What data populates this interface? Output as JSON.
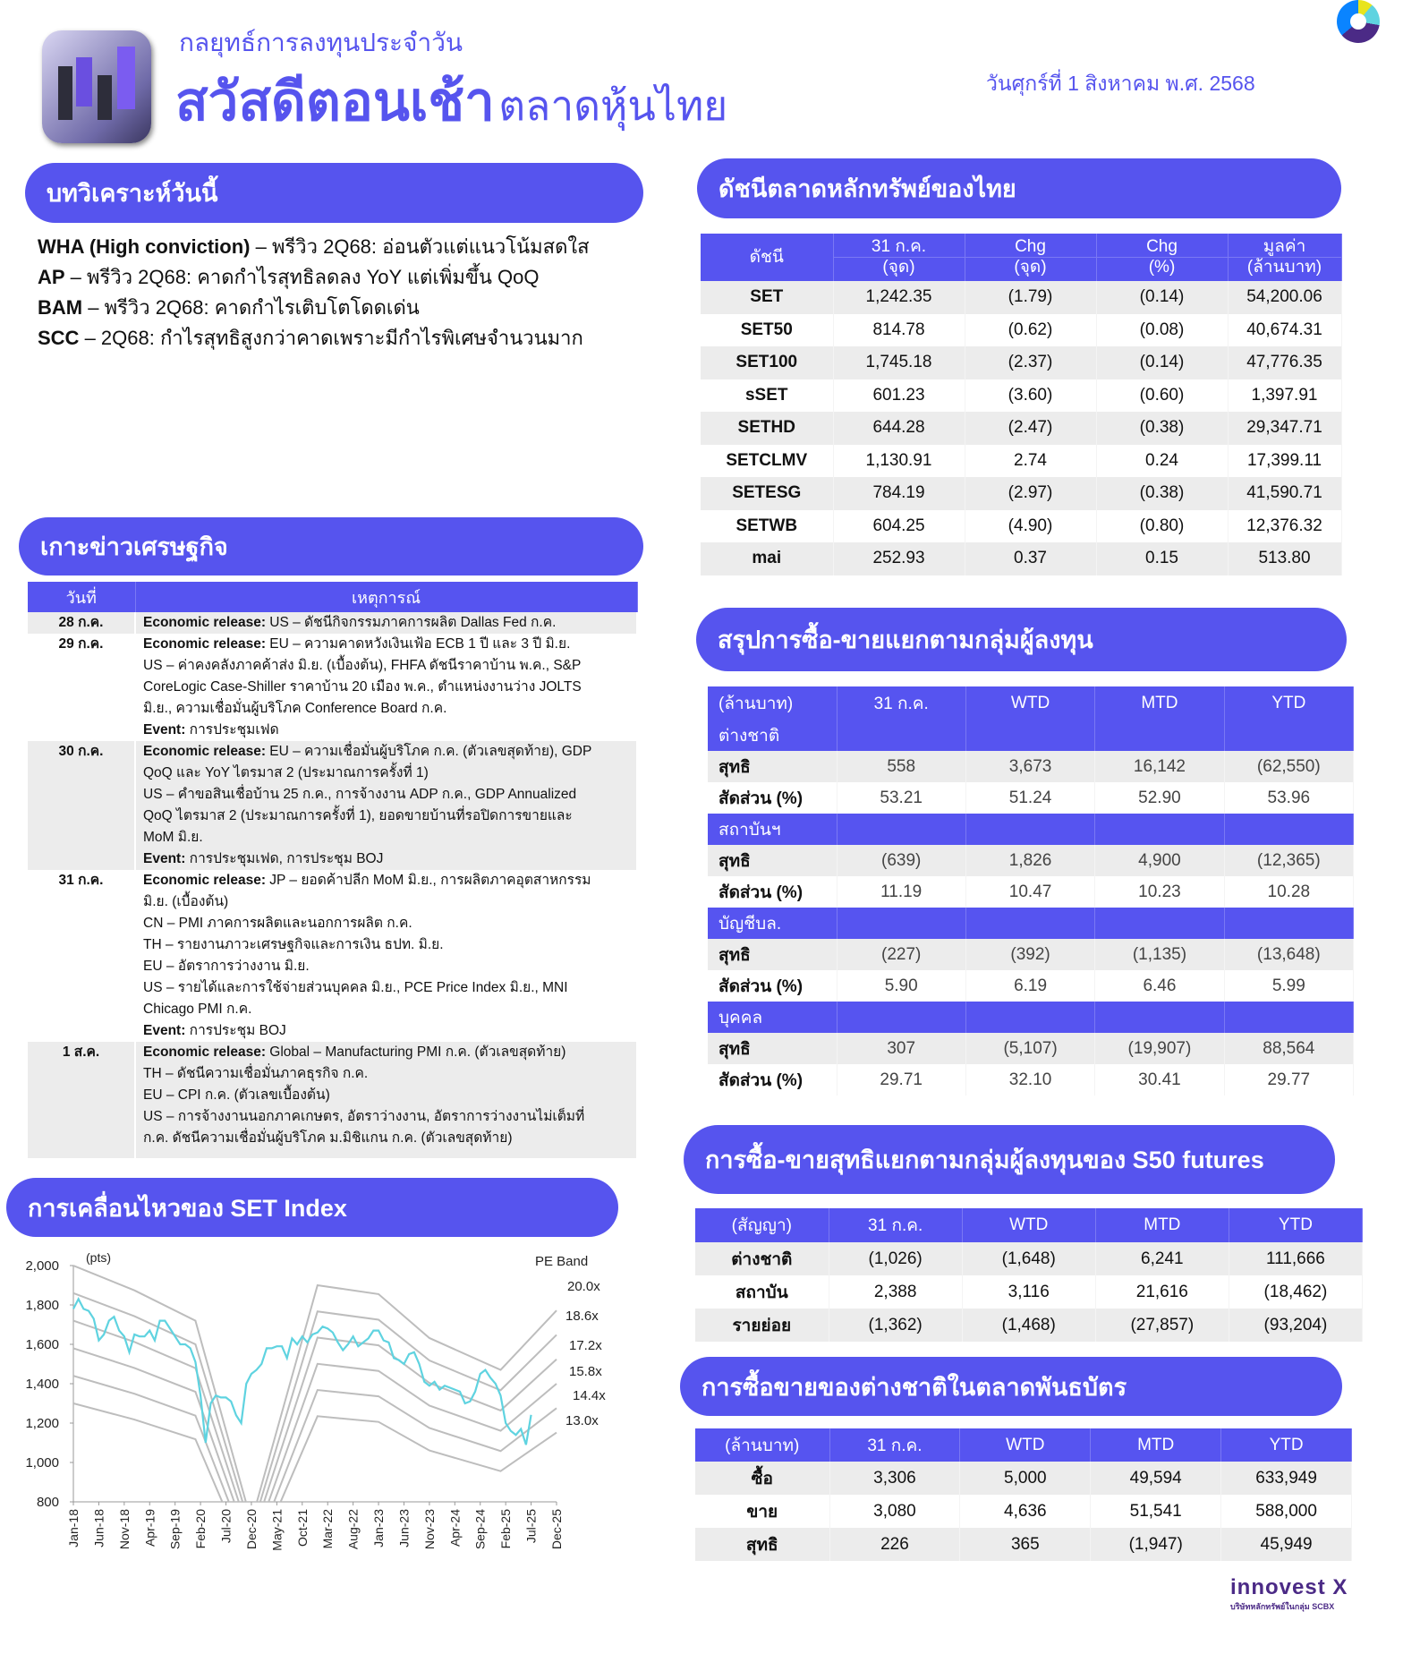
{
  "header": {
    "subtitle": "กลยุทธ์การลงทุนประจำวัน",
    "title": "สวัสดีตอนเช้า",
    "title_suffix": "ตลาดหุ้นไทย",
    "date": "วันศุกร์ที่ 1 สิงหาคม พ.ศ. 2568",
    "brand_color": "#5654ee"
  },
  "analysis": {
    "title": "บทวิเคราะห์วันนี้",
    "items": [
      {
        "ticker": "WHA (High conviction)",
        "text": " – พรีวิว 2Q68: อ่อนตัวแต่แนวโน้มสดใส"
      },
      {
        "ticker": "AP",
        "text": " – พรีวิว 2Q68: คาดกำไรสุทธิลดลง YoY แต่เพิ่มขึ้น QoQ"
      },
      {
        "ticker": "BAM",
        "text": " – พรีวิว 2Q68: คาดกำไรเติบโตโดดเด่น"
      },
      {
        "ticker": "SCC",
        "text": " – 2Q68: กำไรสุทธิสูงกว่าคาดเพราะมีกำไรพิเศษจำนวนมาก"
      }
    ]
  },
  "econ": {
    "title": "เกาะข่าวเศรษฐกิจ",
    "col_date": "วันที่",
    "col_event": "เหตุการณ์",
    "rows": [
      {
        "date": "28 ก.ค.",
        "lines": [
          {
            "b": "Economic release:",
            "t": " US – ดัชนีกิจกรรมภาคการผลิต Dallas Fed ก.ค."
          }
        ]
      },
      {
        "date": "29 ก.ค.",
        "lines": [
          {
            "b": "Economic release:",
            "t": " EU – ความคาดหวังเงินเฟ้อ ECB 1 ปี และ 3 ปี มิ.ย."
          },
          {
            "b": "",
            "t": "US – ค่าคงคลังภาคค้าส่ง มิ.ย. (เบื้องต้น), FHFA ดัชนีราคาบ้าน พ.ค., S&P"
          },
          {
            "b": "",
            "t": "CoreLogic Case-Shiller ราคาบ้าน 20 เมือง พ.ค., ตำแหน่งงานว่าง JOLTS"
          },
          {
            "b": "",
            "t": "มิ.ย., ความเชื่อมั่นผู้บริโภค Conference Board ก.ค."
          },
          {
            "b": "Event:",
            "t": " การประชุมเฟด"
          }
        ]
      },
      {
        "date": "30 ก.ค.",
        "lines": [
          {
            "b": "Economic release:",
            "t": " EU – ความเชื่อมั่นผู้บริโภค ก.ค. (ตัวเลขสุดท้าย), GDP"
          },
          {
            "b": "",
            "t": "QoQ และ YoY ไตรมาส 2 (ประมาณการครั้งที่ 1)"
          },
          {
            "b": "",
            "t": "US – คำขอสินเชื่อบ้าน 25 ก.ค., การจ้างงาน ADP ก.ค., GDP Annualized"
          },
          {
            "b": "",
            "t": "QoQ ไตรมาส 2 (ประมาณการครั้งที่ 1), ยอดขายบ้านที่รอปิดการขายและ"
          },
          {
            "b": "",
            "t": "MoM มิ.ย."
          },
          {
            "b": "Event:",
            "t": " การประชุมเฟด, การประชุม BOJ"
          }
        ]
      },
      {
        "date": "31 ก.ค.",
        "lines": [
          {
            "b": "Economic release:",
            "t": " JP – ยอดค้าปลีก MoM มิ.ย., การผลิตภาคอุตสาหกรรม"
          },
          {
            "b": "",
            "t": "มิ.ย. (เบื้องต้น)"
          },
          {
            "b": "",
            "t": "CN – PMI ภาคการผลิตและนอกการผลิต ก.ค."
          },
          {
            "b": "",
            "t": "TH – รายงานภาวะเศรษฐกิจและการเงิน ธปท. มิ.ย."
          },
          {
            "b": "",
            "t": "EU – อัตราการว่างงาน มิ.ย."
          },
          {
            "b": "",
            "t": "US – รายได้และการใช้จ่ายส่วนบุคคล มิ.ย., PCE Price Index มิ.ย., MNI"
          },
          {
            "b": "",
            "t": "Chicago PMI ก.ค."
          },
          {
            "b": "Event:",
            "t": " การประชุม BOJ"
          }
        ]
      },
      {
        "date": "1 ส.ค.",
        "lines": [
          {
            "b": "Economic release:",
            "t": " Global – Manufacturing PMI ก.ค. (ตัวเลขสุดท้าย)"
          },
          {
            "b": "",
            "t": "TH – ดัชนีความเชื่อมั่นภาคธุรกิจ ก.ค."
          },
          {
            "b": "",
            "t": "EU – CPI ก.ค. (ตัวเลขเบื้องต้น)"
          },
          {
            "b": "",
            "t": "US – การจ้างงานนอกภาคเกษตร, อัตราว่างงาน, อัตราการว่างงานไม่เต็มที่"
          },
          {
            "b": "",
            "t": "ก.ค. ดัชนีความเชื่อมั่นผู้บริโภค ม.มิชิแกน ก.ค. (ตัวเลขสุดท้าย)"
          }
        ]
      }
    ]
  },
  "indices": {
    "title": "ดัชนีตลาดหลักทรัพย์ของไทย",
    "headers": [
      [
        "ดัชนี",
        ""
      ],
      [
        "31 ก.ค.",
        "(จุด)"
      ],
      [
        "Chg",
        "(จุด)"
      ],
      [
        "Chg",
        "(%)"
      ],
      [
        "มูลค่า",
        "(ล้านบาท)"
      ]
    ],
    "rows": [
      [
        "SET",
        "1,242.35",
        "(1.79)",
        "(0.14)",
        "54,200.06"
      ],
      [
        "SET50",
        "814.78",
        "(0.62)",
        "(0.08)",
        "40,674.31"
      ],
      [
        "SET100",
        "1,745.18",
        "(2.37)",
        "(0.14)",
        "47,776.35"
      ],
      [
        "sSET",
        "601.23",
        "(3.60)",
        "(0.60)",
        "1,397.91"
      ],
      [
        "SETHD",
        "644.28",
        "(2.47)",
        "(0.38)",
        "29,347.71"
      ],
      [
        "SETCLMV",
        "1,130.91",
        "2.74",
        "0.24",
        "17,399.11"
      ],
      [
        "SETESG",
        "784.19",
        "(2.97)",
        "(0.38)",
        "41,590.71"
      ],
      [
        "SETWB",
        "604.25",
        "(4.90)",
        "(0.80)",
        "12,376.32"
      ],
      [
        "mai",
        "252.93",
        "0.37",
        "0.15",
        "513.80"
      ]
    ]
  },
  "investors": {
    "title": "สรุปการซื้อ-ขายแยกตามกลุ่มผู้ลงทุน",
    "headers": [
      "(ล้านบาท)",
      "31 ก.ค.",
      "WTD",
      "MTD",
      "YTD"
    ],
    "groups": [
      {
        "name": "ต่างชาติ",
        "rows": [
          [
            "สุทธิ",
            "558",
            "3,673",
            "16,142",
            "(62,550)"
          ],
          [
            "สัดส่วน (%)",
            "53.21",
            "51.24",
            "52.90",
            "53.96"
          ]
        ]
      },
      {
        "name": "สถาบันฯ",
        "rows": [
          [
            "สุทธิ",
            "(639)",
            "1,826",
            "4,900",
            "(12,365)"
          ],
          [
            "สัดส่วน (%)",
            "11.19",
            "10.47",
            "10.23",
            "10.28"
          ]
        ]
      },
      {
        "name": "บัญชีบล.",
        "rows": [
          [
            "สุทธิ",
            "(227)",
            "(392)",
            "(1,135)",
            "(13,648)"
          ],
          [
            "สัดส่วน (%)",
            "5.90",
            "6.19",
            "6.46",
            "5.99"
          ]
        ]
      },
      {
        "name": "บุคคล",
        "rows": [
          [
            "สุทธิ",
            "307",
            "(5,107)",
            "(19,907)",
            "88,564"
          ],
          [
            "สัดส่วน (%)",
            "29.71",
            "32.10",
            "30.41",
            "29.77"
          ]
        ]
      }
    ]
  },
  "futures": {
    "title": "การซื้อ-ขายสุทธิแยกตามกลุ่มผู้ลงทุนของ S50 futures",
    "headers": [
      "(สัญญา)",
      "31 ก.ค.",
      "WTD",
      "MTD",
      "YTD"
    ],
    "rows": [
      [
        "ต่างชาติ",
        "(1,026)",
        "(1,648)",
        "6,241",
        "111,666"
      ],
      [
        "สถาบัน",
        "2,388",
        "3,116",
        "21,616",
        "(18,462)"
      ],
      [
        "รายย่อย",
        "(1,362)",
        "(1,468)",
        "(27,857)",
        "(93,204)"
      ]
    ]
  },
  "bonds": {
    "title": "การซื้อขายของต่างชาติในตลาดพันธบัตร",
    "headers": [
      "(ล้านบาท)",
      "31 ก.ค.",
      "WTD",
      "MTD",
      "YTD"
    ],
    "rows": [
      [
        "ซื้อ",
        "3,306",
        "5,000",
        "49,594",
        "633,949"
      ],
      [
        "ขาย",
        "3,080",
        "4,636",
        "51,541",
        "588,000"
      ],
      [
        "สุทธิ",
        "226",
        "365",
        "(1,947)",
        "45,949"
      ]
    ]
  },
  "set_chart": {
    "title": "การเคลื่อนไหวของ SET Index"
  },
  "chart_data": {
    "type": "line",
    "unit_label": "(pts)",
    "legend_title": "PE Band",
    "ylim": [
      800,
      2000
    ],
    "yticks": [
      "2,000",
      "1,800",
      "1,600",
      "1,400",
      "1,200",
      "1,000",
      "800"
    ],
    "xticks": [
      "Jan-18",
      "Jun-18",
      "Nov-18",
      "Apr-19",
      "Sep-19",
      "Feb-20",
      "Jul-20",
      "Dec-20",
      "May-21",
      "Oct-21",
      "Mar-22",
      "Aug-22",
      "Jan-23",
      "Jun-23",
      "Nov-23",
      "Apr-24",
      "Sep-24",
      "Feb-25",
      "Jul-25",
      "Dec-25"
    ],
    "xrange": [
      "Jan-18",
      "Dec-25"
    ],
    "set_index_monthly": {
      "2018": [
        1780,
        1830,
        1780,
        1770,
        1730,
        1620,
        1650,
        1720,
        1740,
        1670,
        1640,
        1560
      ],
      "2019": [
        1650,
        1640,
        1640,
        1670,
        1620,
        1720,
        1720,
        1680,
        1640,
        1600,
        1600,
        1580
      ],
      "2020": [
        1510,
        1340,
        1100,
        1300,
        1340,
        1330,
        1330,
        1310,
        1240,
        1200,
        1400,
        1450
      ],
      "2021": [
        1470,
        1500,
        1580,
        1580,
        1590,
        1590,
        1530,
        1630,
        1600,
        1640,
        1610,
        1650
      ],
      "2022": [
        1660,
        1690,
        1680,
        1660,
        1610,
        1570,
        1600,
        1640,
        1590,
        1610,
        1630,
        1670
      ],
      "2023": [
        1670,
        1620,
        1610,
        1530,
        1520,
        1500,
        1550,
        1560,
        1500,
        1410,
        1390,
        1410
      ],
      "2024": [
        1370,
        1390,
        1380,
        1370,
        1360,
        1300,
        1310,
        1360,
        1450,
        1470,
        1430,
        1400
      ],
      "2025": [
        1340,
        1200,
        1160,
        1140,
        1170,
        1090,
        1242
      ]
    },
    "band_dates": [
      "Jan-18",
      "Jan-19",
      "Jan-20",
      "Dec-20",
      "Jan-22",
      "Jan-23",
      "Nov-23",
      "Jan-25",
      "Dec-25"
    ],
    "bands": [
      {
        "name": "20.0x",
        "values": [
          2000,
          1874,
          1720,
          700,
          1900,
          1855,
          1632,
          1470,
          1772
        ]
      },
      {
        "name": "18.6x",
        "values": [
          1860,
          1743,
          1600,
          651,
          1767,
          1725,
          1518,
          1367,
          1648
        ]
      },
      {
        "name": "17.2x",
        "values": [
          1720,
          1612,
          1479,
          602,
          1634,
          1595,
          1404,
          1264,
          1524
        ]
      },
      {
        "name": "15.8x",
        "values": [
          1580,
          1480,
          1359,
          553,
          1501,
          1465,
          1289,
          1161,
          1400
        ]
      },
      {
        "name": "14.4x",
        "values": [
          1440,
          1349,
          1238,
          504,
          1368,
          1336,
          1175,
          1058,
          1276
        ]
      },
      {
        "name": "13.0x",
        "values": [
          1300,
          1218,
          1118,
          455,
          1235,
          1206,
          1061,
          956,
          1152
        ]
      }
    ],
    "colors": {
      "set": "#5fd3e0",
      "bands": "#bdbdbd"
    }
  },
  "footer": {
    "logo": "innovest X",
    "logo_sub": "บริษัทหลักทรัพย์ในกลุ่ม SCBX"
  }
}
